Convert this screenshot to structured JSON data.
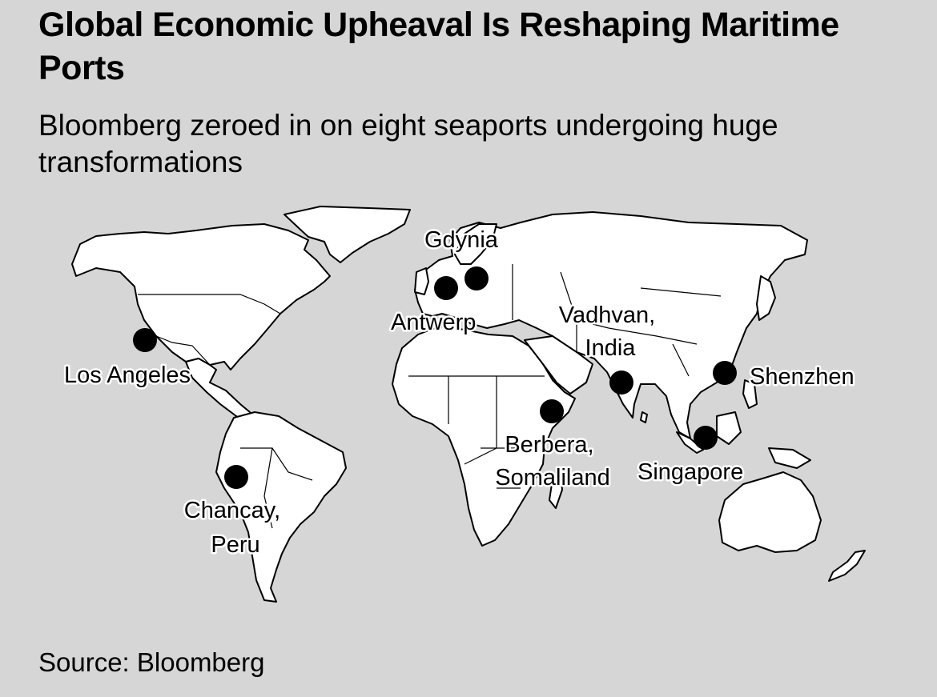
{
  "header": {
    "title": "Global Economic Upheaval Is Reshaping Maritime Ports",
    "subtitle": "Bloomberg zeroed in on eight seaports undergoing huge transformations"
  },
  "map": {
    "ports": [
      {
        "id": "los-angeles",
        "lines": [
          "Los Angeles"
        ]
      },
      {
        "id": "chancay",
        "lines": [
          "Chancay,",
          "Peru"
        ]
      },
      {
        "id": "antwerp",
        "lines": [
          "Antwerp"
        ]
      },
      {
        "id": "gdynia",
        "lines": [
          "Gdynia"
        ]
      },
      {
        "id": "berbera",
        "lines": [
          "Berbera,",
          "Somaliland"
        ]
      },
      {
        "id": "vadhvan",
        "lines": [
          "Vadhvan,",
          "India"
        ]
      },
      {
        "id": "singapore",
        "lines": [
          "Singapore"
        ]
      },
      {
        "id": "shenzhen",
        "lines": [
          "Shenzhen"
        ]
      }
    ],
    "colors": {
      "background": "#d6d6d6",
      "land": "#ffffff",
      "outline": "#000000",
      "marker": "#000000"
    }
  },
  "footer": {
    "source": "Source: Bloomberg"
  }
}
